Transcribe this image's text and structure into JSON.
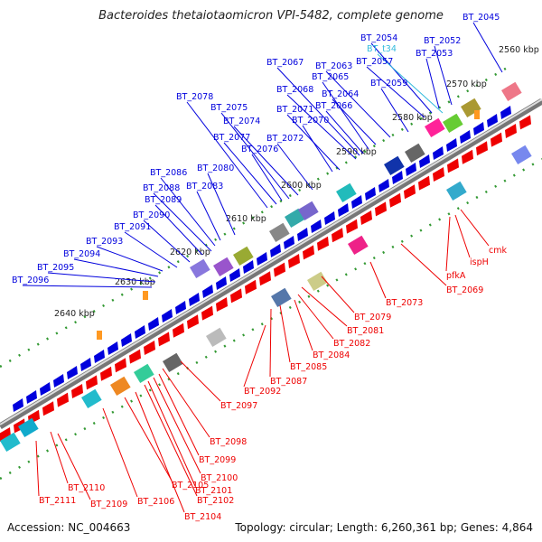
{
  "title": "Bacteroides thetaiotaomicron VPI-5482, complete genome",
  "footer": {
    "accession": "Accession: NC_004663",
    "summary": "Topology: circular; Length: 6,260,361 bp; Genes: 4,864"
  },
  "colors": {
    "forward": "#0000dd",
    "reverse": "#ee0000",
    "trna": "#33bbdd",
    "backbone": "#888888",
    "ticks": "#339933"
  },
  "scale": {
    "unit": "kbp",
    "ticks": [
      {
        "label": "2560 kbp",
        "kbp": 2560
      },
      {
        "label": "2570 kbp",
        "kbp": 2570
      },
      {
        "label": "2580 kbp",
        "kbp": 2580
      },
      {
        "label": "2590 kbp",
        "kbp": 2590
      },
      {
        "label": "2600 kbp",
        "kbp": 2600
      },
      {
        "label": "2610 kbp",
        "kbp": 2610
      },
      {
        "label": "2620 kbp",
        "kbp": 2620
      },
      {
        "label": "2630 kbp",
        "kbp": 2630
      },
      {
        "label": "2640 kbp",
        "kbp": 2640
      }
    ]
  },
  "forward_labels": [
    "BT_2045",
    "BT_2052",
    "BT_2053",
    "BT_2054",
    "BT_t34",
    "BT_2057",
    "BT_2059",
    "BT_2063",
    "BT_2064",
    "BT_2065",
    "BT_2066",
    "BT_2067",
    "BT_2068",
    "BT_2070",
    "BT_2071",
    "BT_2072",
    "BT_2074",
    "BT_2075",
    "BT_2076",
    "BT_2077",
    "BT_2078",
    "BT_2080",
    "BT_2083",
    "BT_2086",
    "BT_2088",
    "BT_2089",
    "BT_2090",
    "BT_2091",
    "BT_2093",
    "BT_2094",
    "BT_2095",
    "BT_2096"
  ],
  "reverse_labels": [
    "cmk",
    "ispH",
    "pfkA",
    "BT_2069",
    "BT_2073",
    "BT_2079",
    "BT_2081",
    "BT_2082",
    "BT_2084",
    "BT_2085",
    "BT_2087",
    "BT_2092",
    "BT_2097",
    "BT_2098",
    "BT_2099",
    "BT_2100",
    "BT_2101",
    "BT_2102",
    "BT_2104",
    "BT_2105",
    "BT_2106",
    "BT_2109",
    "BT_2110",
    "BT_2111"
  ]
}
